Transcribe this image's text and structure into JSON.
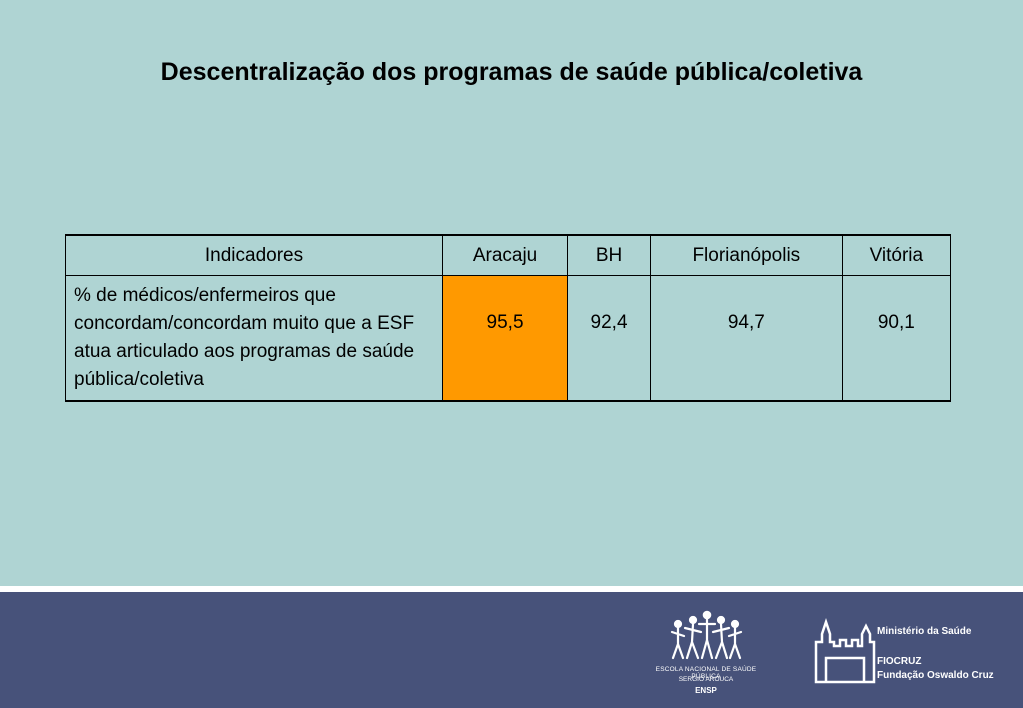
{
  "slide": {
    "title": "Descentralização dos programas de saúde pública/coletiva"
  },
  "table": {
    "headers": [
      "Indicadores",
      "Aracaju",
      "BH",
      "Florianópolis",
      "Vitória"
    ],
    "rows": [
      {
        "indicator": "% de médicos/enfermeiros que concordam/concordam muito que a ESF atua articulado aos programas de saúde pública/coletiva",
        "values": [
          "95,5",
          "92,4",
          "94,7",
          "90,1"
        ]
      }
    ],
    "highlight_color": "#ff9900"
  },
  "footer": {
    "ensp": {
      "line1": "ESCOLA NACIONAL DE SAÚDE PÚBLICA",
      "line2": "SERGIO AROUCA",
      "line3": "ENSP"
    },
    "ministerio": "Ministério da Saúde",
    "fiocruz": "FIOCRUZ",
    "fundacao": "Fundação Oswaldo Cruz"
  },
  "colors": {
    "background": "#afd4d3",
    "footer": "#47527a"
  }
}
